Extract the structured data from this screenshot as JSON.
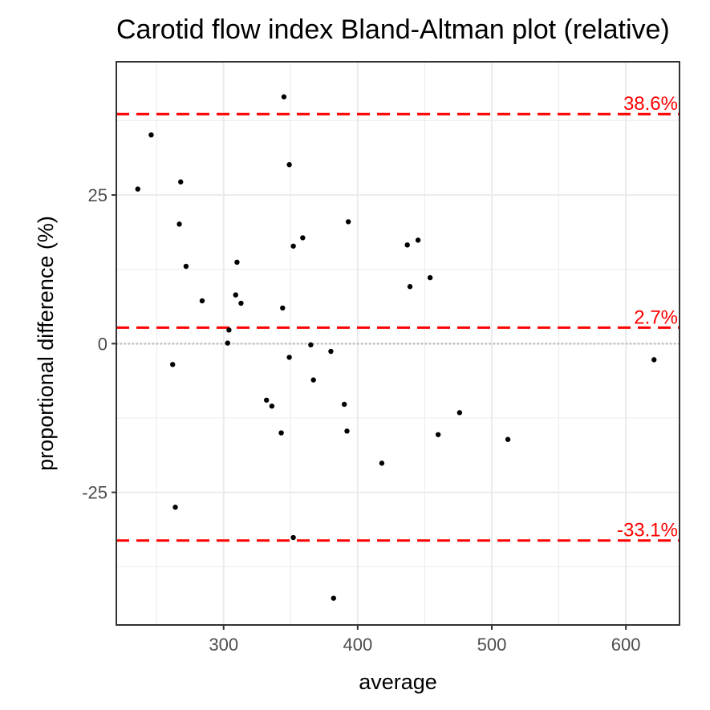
{
  "chart_data": {
    "type": "scatter",
    "title": "Carotid flow index   Bland-Altman plot (relative)",
    "xlabel": "average",
    "ylabel": "proportional difference (%)",
    "xlim": [
      220,
      640
    ],
    "ylim": [
      -47.3,
      47.4
    ],
    "x_ticks": [
      300,
      400,
      500,
      600
    ],
    "y_ticks": [
      -25,
      0,
      25
    ],
    "x_minor": [
      250,
      350,
      450,
      550
    ],
    "y_minor": [
      -37.5,
      -12.5,
      12.5,
      37.5
    ],
    "grid": true,
    "zero_line": 0,
    "reference_lines": [
      {
        "value": 38.6,
        "label": "38.6%"
      },
      {
        "value": 2.7,
        "label": "2.7%"
      },
      {
        "value": -33.1,
        "label": "-33.1%"
      }
    ],
    "ref_color": "#ff0000",
    "point_color": "#000000",
    "points": [
      {
        "x": 345,
        "y": 41.5
      },
      {
        "x": 246,
        "y": 35.1
      },
      {
        "x": 236,
        "y": 26.0
      },
      {
        "x": 268,
        "y": 27.2
      },
      {
        "x": 349,
        "y": 30.1
      },
      {
        "x": 267,
        "y": 20.1
      },
      {
        "x": 393,
        "y": 20.5
      },
      {
        "x": 359,
        "y": 17.8
      },
      {
        "x": 352,
        "y": 16.4
      },
      {
        "x": 437,
        "y": 16.6
      },
      {
        "x": 445,
        "y": 17.4
      },
      {
        "x": 310,
        "y": 13.7
      },
      {
        "x": 272,
        "y": 13.0
      },
      {
        "x": 454,
        "y": 11.1
      },
      {
        "x": 439,
        "y": 9.6
      },
      {
        "x": 309,
        "y": 8.2
      },
      {
        "x": 284,
        "y": 7.2
      },
      {
        "x": 313,
        "y": 6.8
      },
      {
        "x": 344,
        "y": 6.0
      },
      {
        "x": 304,
        "y": 2.3
      },
      {
        "x": 303,
        "y": 0.1
      },
      {
        "x": 365,
        "y": -0.2
      },
      {
        "x": 380,
        "y": -1.3
      },
      {
        "x": 349,
        "y": -2.3
      },
      {
        "x": 262,
        "y": -3.5
      },
      {
        "x": 621,
        "y": -2.7
      },
      {
        "x": 367,
        "y": -6.1
      },
      {
        "x": 332,
        "y": -9.5
      },
      {
        "x": 336,
        "y": -10.5
      },
      {
        "x": 390,
        "y": -10.2
      },
      {
        "x": 476,
        "y": -11.6
      },
      {
        "x": 343,
        "y": -15.0
      },
      {
        "x": 392,
        "y": -14.7
      },
      {
        "x": 460,
        "y": -15.3
      },
      {
        "x": 512,
        "y": -16.1
      },
      {
        "x": 418,
        "y": -20.1
      },
      {
        "x": 264,
        "y": -27.5
      },
      {
        "x": 352,
        "y": -32.6
      },
      {
        "x": 382,
        "y": -42.8
      }
    ]
  }
}
